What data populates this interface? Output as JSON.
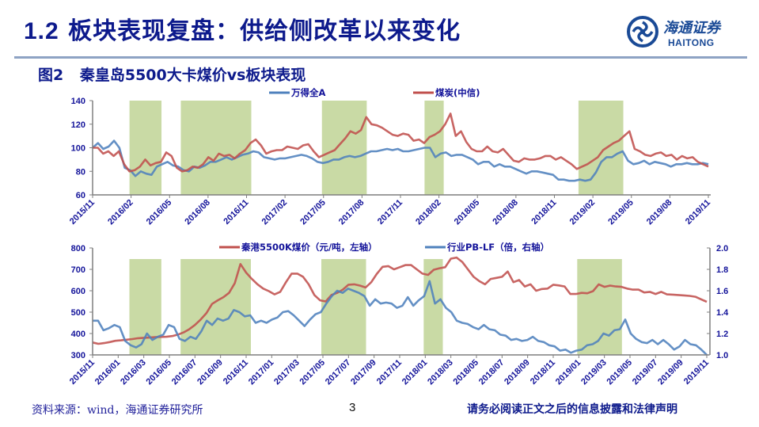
{
  "header": {
    "title_num": "1.2",
    "title_text": "板块表现复盘：供给侧改革以来变化",
    "logo": {
      "cn": "海通证券",
      "en": "HAITONG",
      "icon": "haitong-logo-icon"
    }
  },
  "figure": {
    "label": "图2",
    "title": "秦皇岛5500大卡煤价vs板块表现"
  },
  "footer": {
    "source": "资料来源：wind，海通证券研究所",
    "page": "3",
    "disclaimer": "请务必阅读正文之后的信息披露和法律声明"
  },
  "colors": {
    "title": "#0d1a8c",
    "red_series": "#c0504d",
    "blue_series": "#4f81bd",
    "shade": "#c3d69b",
    "axis": "#7f7f7f",
    "tick_text": "#13139a"
  },
  "chart_data": [
    {
      "type": "line",
      "title": "",
      "legend_position": "top",
      "series": [
        {
          "name": "万得全A",
          "color": "#4f81bd",
          "values": [
            100,
            104,
            99,
            101,
            106,
            100,
            83,
            81,
            76,
            80,
            78,
            77,
            84,
            86,
            88,
            85,
            84,
            81,
            80,
            84,
            83,
            85,
            88,
            88,
            90,
            92,
            90,
            92,
            94,
            95,
            97,
            96,
            92,
            91,
            90,
            91,
            91,
            92,
            93,
            94,
            93,
            91,
            88,
            87,
            88,
            90,
            90,
            92,
            93,
            92,
            93,
            95,
            97,
            97,
            98,
            99,
            98,
            99,
            97,
            97,
            98,
            99,
            100,
            100,
            92,
            95,
            96,
            93,
            94,
            94,
            92,
            90,
            86,
            88,
            88,
            84,
            86,
            84,
            84,
            82,
            80,
            78,
            80,
            80,
            79,
            78,
            77,
            73,
            73,
            72,
            72,
            73,
            72,
            73,
            79,
            88,
            92,
            92,
            95,
            97,
            89,
            86,
            87,
            89,
            86,
            88,
            87,
            86,
            84,
            86,
            86,
            87,
            86,
            86,
            87,
            86
          ]
        },
        {
          "name": "煤炭(中信)",
          "color": "#c0504d",
          "values": [
            100,
            100,
            95,
            97,
            93,
            97,
            86,
            80,
            81,
            84,
            90,
            85,
            87,
            88,
            96,
            93,
            83,
            80,
            81,
            84,
            83,
            86,
            92,
            89,
            95,
            93,
            94,
            91,
            95,
            98,
            104,
            107,
            102,
            95,
            97,
            98,
            98,
            101,
            100,
            99,
            102,
            103,
            97,
            92,
            94,
            96,
            98,
            103,
            108,
            114,
            112,
            115,
            126,
            120,
            119,
            117,
            114,
            111,
            110,
            112,
            111,
            106,
            107,
            104,
            109,
            111,
            114,
            120,
            129,
            110,
            114,
            105,
            99,
            97,
            97,
            101,
            97,
            96,
            99,
            94,
            89,
            88,
            91,
            90,
            90,
            91,
            93,
            93,
            90,
            92,
            89,
            86,
            82,
            84,
            86,
            89,
            92,
            98,
            101,
            104,
            106,
            110,
            114,
            99,
            97,
            94,
            93,
            95,
            96,
            93,
            94,
            90,
            93,
            91,
            92,
            88,
            86,
            84
          ]
        }
      ],
      "x_ticks": [
        "2015/11",
        "2016/02",
        "2016/05",
        "2016/08",
        "2016/11",
        "2017/02",
        "2017/05",
        "2017/08",
        "2017/11",
        "2018/02",
        "2018/05",
        "2018/08",
        "2018/11",
        "2019/02",
        "2019/05",
        "2019/08",
        "2019/11"
      ],
      "y_ticks": [
        60,
        80,
        100,
        120,
        140
      ],
      "ylim": [
        60,
        140
      ],
      "shaded_periods": [
        [
          "2016/02",
          "2016/04"
        ],
        [
          "2016/06",
          "2016/11"
        ],
        [
          "2017/05",
          "2017/08"
        ],
        [
          "2018/01",
          "2018/02"
        ],
        [
          "2019/01",
          "2019/04"
        ]
      ],
      "grid": false
    },
    {
      "type": "line",
      "title": "",
      "legend_position": "top",
      "series": [
        {
          "name": "秦港5500K煤价（元/吨，左轴）",
          "axis": "left",
          "color": "#c0504d",
          "values": [
            358,
            352,
            355,
            360,
            366,
            368,
            371,
            374,
            378,
            380,
            381,
            383,
            384,
            385,
            388,
            395,
            405,
            420,
            440,
            465,
            495,
            538,
            555,
            570,
            590,
            635,
            725,
            685,
            655,
            630,
            610,
            598,
            583,
            595,
            640,
            680,
            680,
            665,
            630,
            580,
            555,
            550,
            580,
            590,
            605,
            628,
            630,
            624,
            615,
            640,
            680,
            712,
            715,
            700,
            710,
            720,
            720,
            700,
            680,
            674,
            698,
            705,
            710,
            750,
            755,
            735,
            700,
            665,
            645,
            630,
            655,
            660,
            665,
            690,
            640,
            650,
            620,
            630,
            600,
            608,
            610,
            628,
            625,
            620,
            585,
            585,
            590,
            588,
            598,
            630,
            618,
            624,
            620,
            618,
            610,
            605,
            605,
            592,
            595,
            585,
            595,
            583,
            582,
            580,
            578,
            576,
            572,
            560,
            548
          ]
        },
        {
          "name": "行业PB-LF（倍，右轴）",
          "axis": "right",
          "color": "#4f81bd",
          "values": [
            1.32,
            1.32,
            1.23,
            1.25,
            1.28,
            1.26,
            1.13,
            1.09,
            1.07,
            1.1,
            1.2,
            1.14,
            1.17,
            1.19,
            1.28,
            1.26,
            1.15,
            1.13,
            1.17,
            1.15,
            1.22,
            1.32,
            1.28,
            1.34,
            1.32,
            1.34,
            1.42,
            1.4,
            1.36,
            1.37,
            1.3,
            1.32,
            1.3,
            1.33,
            1.35,
            1.4,
            1.41,
            1.37,
            1.32,
            1.27,
            1.33,
            1.38,
            1.4,
            1.48,
            1.55,
            1.6,
            1.58,
            1.62,
            1.6,
            1.58,
            1.55,
            1.46,
            1.52,
            1.48,
            1.49,
            1.48,
            1.44,
            1.46,
            1.54,
            1.46,
            1.51,
            1.55,
            1.69,
            1.48,
            1.52,
            1.44,
            1.4,
            1.32,
            1.3,
            1.29,
            1.26,
            1.24,
            1.28,
            1.24,
            1.23,
            1.19,
            1.18,
            1.14,
            1.15,
            1.13,
            1.14,
            1.17,
            1.13,
            1.12,
            1.09,
            1.08,
            1.04,
            1.05,
            1.02,
            1.04,
            1.05,
            1.09,
            1.1,
            1.13,
            1.2,
            1.18,
            1.23,
            1.24,
            1.33,
            1.2,
            1.15,
            1.12,
            1.11,
            1.14,
            1.1,
            1.14,
            1.1,
            1.05,
            1.08,
            1.14,
            1.1,
            1.09,
            1.05,
            1.0
          ]
        }
      ],
      "x_ticks": [
        "2015/11",
        "2016/01",
        "2016/03",
        "2016/05",
        "2016/07",
        "2016/09",
        "2016/11",
        "2017/01",
        "2017/03",
        "2017/05",
        "2017/07",
        "2017/09",
        "2017/11",
        "2018/01",
        "2018/03",
        "2018/05",
        "2018/07",
        "2018/09",
        "2018/11",
        "2019/01",
        "2019/03",
        "2019/05",
        "2019/07",
        "2019/09",
        "2019/11"
      ],
      "y_ticks_left": [
        300,
        400,
        500,
        600,
        700,
        800
      ],
      "ylim_left": [
        300,
        800
      ],
      "y_ticks_right": [
        "1.0",
        "1.2",
        "1.4",
        "1.6",
        "1.8",
        "2.0"
      ],
      "ylim_right": [
        1.0,
        2.0
      ],
      "shaded_periods": [
        [
          "2016/02",
          "2016/04"
        ],
        [
          "2016/06",
          "2016/11"
        ],
        [
          "2017/05",
          "2017/08"
        ],
        [
          "2018/01",
          "2018/02"
        ],
        [
          "2019/01",
          "2019/04"
        ]
      ],
      "grid": false
    }
  ]
}
